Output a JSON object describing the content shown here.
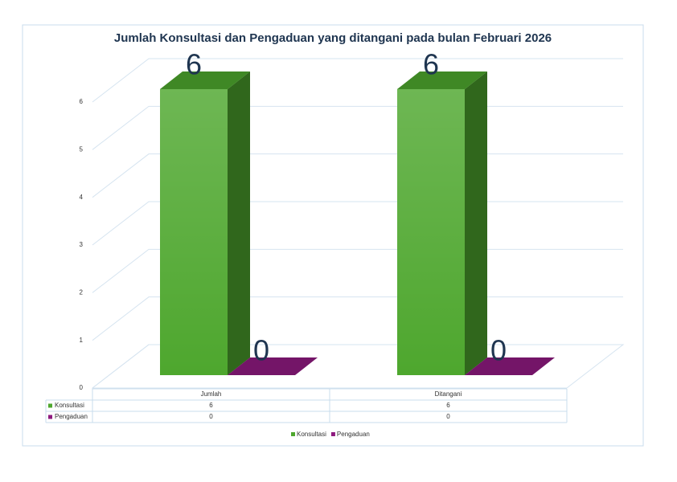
{
  "chart_data": {
    "type": "bar3d",
    "title": "Jumlah  Konsultasi dan Pengaduan yang ditangani pada bulan Februari 2026",
    "categories": [
      "Jumlah",
      "Ditangani"
    ],
    "series": [
      {
        "name": "Konsultasi",
        "color": "#4ea72e",
        "values": [
          6,
          6
        ]
      },
      {
        "name": "Pengaduan",
        "color": "#8e1a7f",
        "values": [
          0,
          0
        ]
      }
    ],
    "ylim": [
      0,
      6
    ],
    "yticks": [
      0,
      1,
      2,
      3,
      4,
      5,
      6
    ],
    "grid": true,
    "data_table": true,
    "legend": "bottom"
  }
}
